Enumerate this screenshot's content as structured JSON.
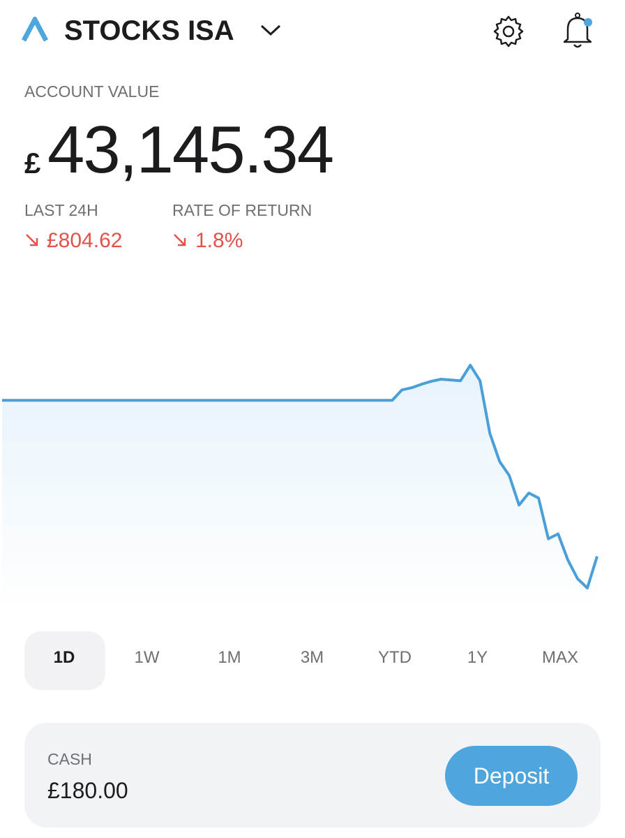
{
  "header": {
    "title": "STOCKS ISA"
  },
  "account": {
    "label": "ACCOUNT VALUE",
    "currency": "£",
    "value": "43,145.34"
  },
  "stats": [
    {
      "label": "LAST 24H",
      "value": "£804.62"
    },
    {
      "label": "RATE OF RETURN",
      "value": "1.8%"
    }
  ],
  "chart_data": {
    "type": "line",
    "color": "#4a9fd8",
    "values": [
      43950,
      43950,
      43950,
      43950,
      43950,
      43950,
      43950,
      43950,
      43950,
      43950,
      43950,
      43950,
      43950,
      43950,
      43950,
      43950,
      43950,
      43950,
      43950,
      43950,
      43950,
      43950,
      43950,
      43950,
      43950,
      43950,
      43950,
      43950,
      43950,
      43950,
      43950,
      43950,
      43950,
      43950,
      43950,
      43950,
      43950,
      43950,
      43950,
      43950,
      43950,
      44004,
      44015,
      44033,
      44048,
      44059,
      44055,
      44051,
      44131,
      44051,
      43780,
      43635,
      43562,
      43410,
      43472,
      43446,
      43236,
      43261,
      43127,
      43030,
      42982,
      43145
    ]
  },
  "ranges": {
    "items": [
      "1D",
      "1W",
      "1M",
      "3M",
      "YTD",
      "1Y",
      "MAX"
    ],
    "selected": 0
  },
  "cash": {
    "label": "CASH",
    "value": "£180.00",
    "button": "Deposit"
  }
}
